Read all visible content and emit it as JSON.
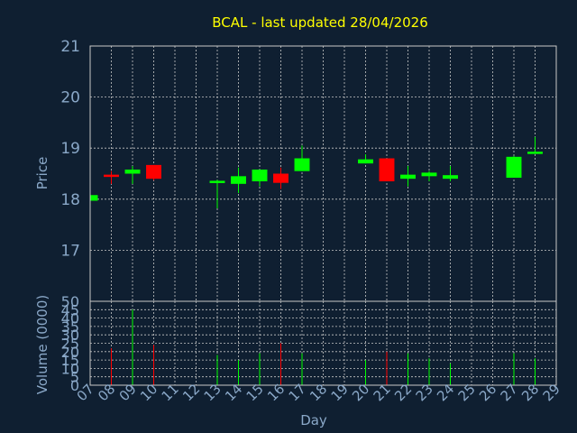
{
  "chart_data": {
    "type": "candlestick",
    "title": "BCAL - last updated 28/04/2026",
    "xlabel": "Day",
    "price_ylabel": "Price",
    "volume_ylabel": "Volume (0000)",
    "price_ylim": [
      16.0,
      21.0
    ],
    "price_ticks": [
      "17",
      "18",
      "19",
      "20",
      "21"
    ],
    "volume_ylim": [
      0,
      50
    ],
    "volume_ticks": [
      "0",
      "5",
      "10",
      "15",
      "20",
      "25",
      "30",
      "35",
      "40",
      "45",
      "50"
    ],
    "x_ticks": [
      "07",
      "08",
      "09",
      "10",
      "11",
      "12",
      "13",
      "14",
      "15",
      "16",
      "17",
      "18",
      "19",
      "20",
      "21",
      "22",
      "23",
      "24",
      "25",
      "26",
      "27",
      "28",
      "29"
    ],
    "grid": true,
    "colors": {
      "up": "#00ff00",
      "down": "#ff0000",
      "title": "#ffff00",
      "axis": "#8aa8c8",
      "background": "#0f1f31"
    },
    "candles": [
      {
        "day": 7,
        "open": 17.97,
        "high": 18.08,
        "low": 17.95,
        "close": 18.08
      },
      {
        "day": 8,
        "open": 18.48,
        "high": 18.55,
        "low": 18.3,
        "close": 18.45
      },
      {
        "day": 9,
        "open": 18.5,
        "high": 18.65,
        "low": 18.3,
        "close": 18.58
      },
      {
        "day": 10,
        "open": 18.67,
        "high": 18.67,
        "low": 18.37,
        "close": 18.4
      },
      {
        "day": 13,
        "open": 18.32,
        "high": 18.38,
        "low": 17.82,
        "close": 18.36
      },
      {
        "day": 14,
        "open": 18.3,
        "high": 18.62,
        "low": 18.12,
        "close": 18.45
      },
      {
        "day": 15,
        "open": 18.35,
        "high": 18.58,
        "low": 18.25,
        "close": 18.58
      },
      {
        "day": 16,
        "open": 18.5,
        "high": 18.62,
        "low": 18.2,
        "close": 18.32
      },
      {
        "day": 17,
        "open": 18.55,
        "high": 19.05,
        "low": 18.55,
        "close": 18.8
      },
      {
        "day": 20,
        "open": 18.7,
        "high": 18.88,
        "low": 18.7,
        "close": 18.78
      },
      {
        "day": 21,
        "open": 18.8,
        "high": 18.8,
        "low": 18.35,
        "close": 18.35
      },
      {
        "day": 22,
        "open": 18.4,
        "high": 18.65,
        "low": 18.25,
        "close": 18.48
      },
      {
        "day": 23,
        "open": 18.45,
        "high": 18.55,
        "low": 18.35,
        "close": 18.52
      },
      {
        "day": 24,
        "open": 18.4,
        "high": 18.65,
        "low": 18.35,
        "close": 18.47
      },
      {
        "day": 27,
        "open": 18.42,
        "high": 18.85,
        "low": 18.42,
        "close": 18.83
      },
      {
        "day": 28,
        "open": 18.9,
        "high": 19.22,
        "low": 18.9,
        "close": 18.93
      }
    ],
    "volume": [
      {
        "day": 8,
        "value": 22,
        "dir": "down"
      },
      {
        "day": 9,
        "value": 45,
        "dir": "up"
      },
      {
        "day": 10,
        "value": 24,
        "dir": "down"
      },
      {
        "day": 13,
        "value": 18,
        "dir": "up"
      },
      {
        "day": 14,
        "value": 15,
        "dir": "up"
      },
      {
        "day": 15,
        "value": 19,
        "dir": "up"
      },
      {
        "day": 16,
        "value": 25,
        "dir": "down"
      },
      {
        "day": 17,
        "value": 19,
        "dir": "up"
      },
      {
        "day": 20,
        "value": 15,
        "dir": "up"
      },
      {
        "day": 21,
        "value": 20,
        "dir": "down"
      },
      {
        "day": 22,
        "value": 19,
        "dir": "up"
      },
      {
        "day": 23,
        "value": 16,
        "dir": "up"
      },
      {
        "day": 24,
        "value": 13,
        "dir": "up"
      },
      {
        "day": 27,
        "value": 19,
        "dir": "up"
      },
      {
        "day": 28,
        "value": 16,
        "dir": "up"
      }
    ]
  }
}
